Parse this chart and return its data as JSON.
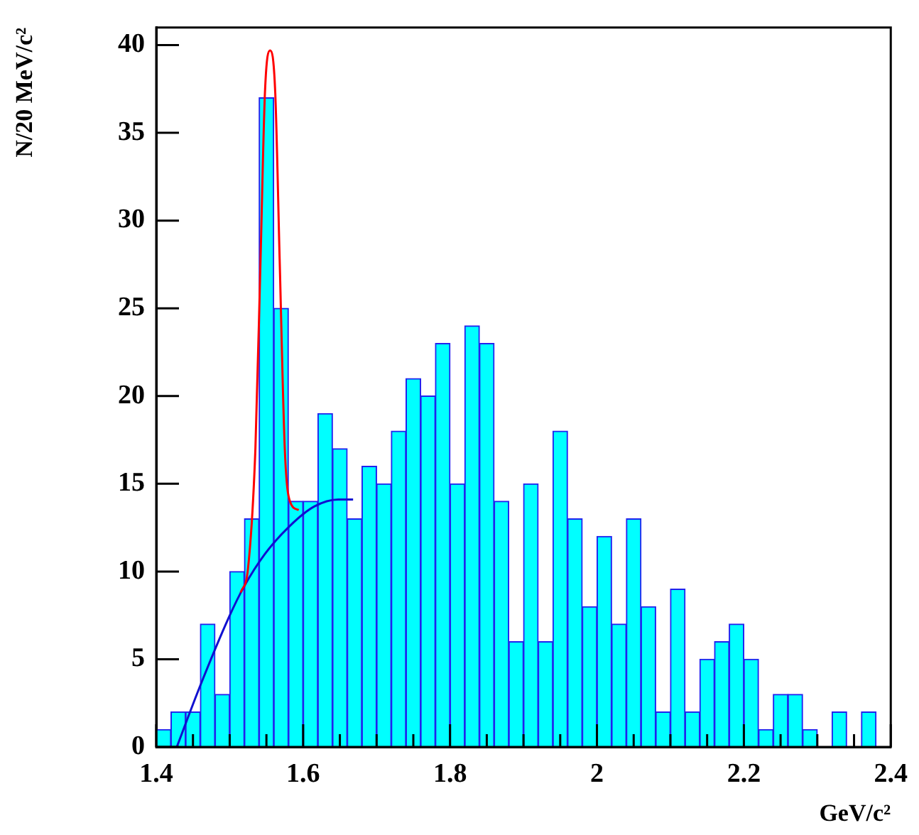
{
  "chart_data": {
    "type": "histogram",
    "xlabel": "GeV/c²",
    "ylabel": "N/20 MeV/c²",
    "bins": [
      1.4,
      1.42,
      1.44,
      1.46,
      1.48,
      1.5,
      1.52,
      1.54,
      1.56,
      1.58,
      1.6,
      1.62,
      1.64,
      1.66,
      1.68,
      1.7,
      1.72,
      1.74,
      1.76,
      1.78,
      1.8,
      1.82,
      1.84,
      1.86,
      1.88,
      1.9,
      1.92,
      1.94,
      1.96,
      1.98,
      2.0,
      2.02,
      2.04,
      2.06,
      2.08,
      2.1,
      2.12,
      2.14,
      2.16,
      2.18,
      2.2,
      2.22,
      2.24,
      2.26,
      2.28,
      2.3,
      2.32,
      2.34,
      2.36,
      2.38,
      2.4
    ],
    "values": [
      1,
      2,
      2,
      7,
      3,
      10,
      13,
      37,
      25,
      14,
      14,
      19,
      17,
      13,
      16,
      15,
      18,
      21,
      20,
      23,
      15,
      24,
      23,
      14,
      6,
      15,
      6,
      18,
      13,
      8,
      12,
      7,
      13,
      8,
      2,
      9,
      2,
      5,
      6,
      7,
      5,
      1,
      3,
      3,
      1,
      0,
      2,
      0,
      2,
      0
    ],
    "color": "#00ffff",
    "series": [
      {
        "type": "line",
        "color": "#ff0000",
        "x": [
          1.515,
          1.525,
          1.535,
          1.542,
          1.548,
          1.555,
          1.562,
          1.568,
          1.575,
          1.582,
          1.594
        ],
        "values": [
          8.8,
          10.2,
          17,
          27.8,
          37.3,
          39.7,
          37.3,
          27.8,
          17,
          14,
          13.5
        ]
      },
      {
        "type": "line",
        "color": "#1010d0",
        "x": [
          1.428,
          1.459,
          1.499,
          1.519,
          1.548,
          1.582,
          1.615,
          1.648,
          1.668
        ],
        "values": [
          0,
          3.4,
          7.4,
          9.1,
          11,
          12.6,
          13.7,
          14.1,
          14.1
        ]
      }
    ],
    "xlim": [
      1.4,
      2.4
    ],
    "ylim": [
      0,
      41
    ],
    "xticks": [
      1.4,
      {
        "value": 1.45,
        "label": null
      },
      {
        "value": 1.5,
        "label": null
      },
      {
        "value": 1.55,
        "label": null
      },
      1.6,
      {
        "value": 1.65,
        "label": null
      },
      {
        "value": 1.7,
        "label": null
      },
      {
        "value": 1.75,
        "label": null
      },
      1.8,
      {
        "value": 1.85,
        "label": null
      },
      {
        "value": 1.9,
        "label": null
      },
      {
        "value": 1.95,
        "label": null
      },
      2,
      {
        "value": 2.05,
        "label": null
      },
      {
        "value": 2.1,
        "label": null
      },
      {
        "value": 2.15,
        "label": null
      },
      2.2,
      {
        "value": 2.25,
        "label": null
      },
      {
        "value": 2.3,
        "label": null
      },
      {
        "value": 2.35,
        "label": null
      },
      2.4
    ],
    "yticks": [
      0,
      5,
      10,
      15,
      20,
      25,
      30,
      35,
      40
    ],
    "grid": false,
    "legend": false,
    "marker": "none",
    "line_style": "solid"
  }
}
